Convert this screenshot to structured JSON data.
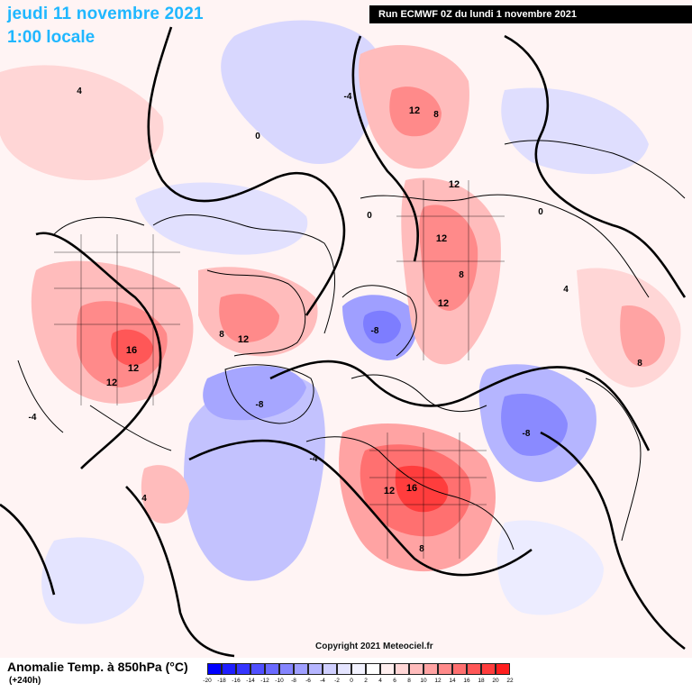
{
  "header": {
    "date": "jeudi 11 novembre 2021",
    "time": "1:00 locale",
    "run": "Run ECMWF 0Z du lundi 1 novembre 2021"
  },
  "copyright": "Copyright 2021 Meteociel.fr",
  "legend": {
    "title": "Anomalie Temp. à 850hPa (°C)",
    "lead": "(+240h)",
    "colors": [
      "#0000ff",
      "#1f1fff",
      "#3535ff",
      "#5050ff",
      "#6a6aff",
      "#8585ff",
      "#9f9fff",
      "#b5b5ff",
      "#cfcfff",
      "#e4e4ff",
      "#f2f2ff",
      "#ffffff",
      "#ffefef",
      "#ffd6d6",
      "#ffbcbc",
      "#ffa3a3",
      "#ff8a8a",
      "#ff7070",
      "#ff5757",
      "#ff3d3d",
      "#ff1f1f"
    ],
    "ticks": [
      "-20",
      "-18",
      "-16",
      "-14",
      "-12",
      "-10",
      "-8",
      "-6",
      "-4",
      "-2",
      "0",
      "2",
      "4",
      "6",
      "8",
      "10",
      "12",
      "14",
      "16",
      "18",
      "20",
      "22"
    ]
  },
  "map_labels": [
    {
      "value": "16",
      "region": "central-north-america"
    },
    {
      "value": "12",
      "region": "central-north-america"
    },
    {
      "value": "12",
      "region": "western-north-america"
    },
    {
      "value": "12",
      "region": "hudson-bay"
    },
    {
      "value": "8",
      "region": "hudson-bay"
    },
    {
      "value": "-8",
      "region": "greenland"
    },
    {
      "value": "-8",
      "region": "scandinavia"
    },
    {
      "value": "16",
      "region": "north-africa"
    },
    {
      "value": "12",
      "region": "north-africa"
    },
    {
      "value": "8",
      "region": "mediterranean"
    },
    {
      "value": "12",
      "region": "siberia-north"
    },
    {
      "value": "8",
      "region": "siberia-north"
    },
    {
      "value": "12",
      "region": "siberia-central"
    },
    {
      "value": "12",
      "region": "siberia-central"
    },
    {
      "value": "12",
      "region": "siberia-central"
    },
    {
      "value": "8",
      "region": "siberia-central"
    },
    {
      "value": "-8",
      "region": "central-asia"
    },
    {
      "value": "8",
      "region": "east-asia"
    },
    {
      "value": "-4",
      "region": "arctic"
    },
    {
      "value": "0",
      "region": "arctic"
    },
    {
      "value": "4",
      "region": "north-pacific"
    },
    {
      "value": "-4",
      "region": "atlantic"
    },
    {
      "value": "4",
      "region": "atlantic"
    },
    {
      "value": "0",
      "region": "europe"
    },
    {
      "value": "-4",
      "region": "europe"
    },
    {
      "value": "4",
      "region": "russia"
    },
    {
      "value": "0",
      "region": "russia"
    }
  ]
}
